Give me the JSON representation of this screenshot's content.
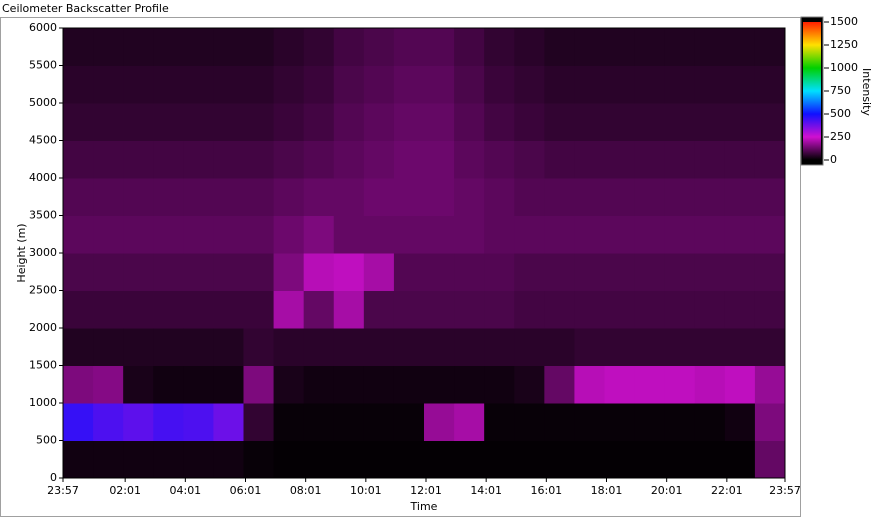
{
  "chart_data": {
    "type": "heatmap",
    "title": "Ceilometer Backscatter Profile",
    "x_label": "Time",
    "y_label": "Height (m)",
    "colorbar_label": "Intensity",
    "xlim": [
      0,
      1440
    ],
    "xticks": [
      {
        "value": 0,
        "label": "23:57"
      },
      {
        "value": 124,
        "label": "02:01"
      },
      {
        "value": 244,
        "label": "04:01"
      },
      {
        "value": 364,
        "label": "06:01"
      },
      {
        "value": 484,
        "label": "08:01"
      },
      {
        "value": 604,
        "label": "10:01"
      },
      {
        "value": 724,
        "label": "12:01"
      },
      {
        "value": 844,
        "label": "14:01"
      },
      {
        "value": 964,
        "label": "16:01"
      },
      {
        "value": 1084,
        "label": "18:01"
      },
      {
        "value": 1204,
        "label": "20:01"
      },
      {
        "value": 1324,
        "label": "22:01"
      },
      {
        "value": 1440,
        "label": "23:57"
      }
    ],
    "ylim": [
      0,
      6000
    ],
    "yticks": [
      0,
      500,
      1000,
      1500,
      2000,
      2500,
      3000,
      3500,
      4000,
      4500,
      5000,
      5500,
      6000
    ],
    "clim": [
      0,
      1500
    ],
    "cticks": [
      0,
      250,
      500,
      750,
      1000,
      1250,
      1500
    ],
    "colors": [
      "#000000",
      "#d010d0",
      "#1010ff",
      "#00e0ff",
      "#00d000",
      "#ffe000",
      "#ff2000"
    ],
    "z": [
      [
        20,
        20,
        20,
        20,
        20,
        20,
        10,
        5,
        5,
        5,
        5,
        5,
        5,
        5,
        5,
        5,
        5,
        5,
        5,
        5,
        5,
        5,
        5,
        120
      ],
      [
        450,
        420,
        400,
        430,
        420,
        380,
        60,
        10,
        10,
        10,
        10,
        10,
        180,
        200,
        10,
        10,
        10,
        10,
        10,
        10,
        10,
        10,
        20,
        150
      ],
      [
        150,
        160,
        30,
        20,
        20,
        20,
        150,
        30,
        20,
        20,
        20,
        20,
        20,
        20,
        20,
        30,
        120,
        220,
        230,
        230,
        230,
        220,
        230,
        180
      ],
      [
        40,
        40,
        40,
        40,
        40,
        40,
        60,
        50,
        50,
        50,
        50,
        50,
        50,
        50,
        50,
        50,
        50,
        60,
        60,
        60,
        60,
        60,
        60,
        60
      ],
      [
        70,
        70,
        70,
        70,
        70,
        70,
        70,
        200,
        120,
        200,
        90,
        90,
        90,
        90,
        90,
        80,
        80,
        80,
        80,
        80,
        80,
        80,
        80,
        80
      ],
      [
        90,
        90,
        90,
        90,
        90,
        90,
        90,
        150,
        220,
        230,
        200,
        100,
        100,
        100,
        100,
        90,
        90,
        90,
        90,
        90,
        90,
        90,
        90,
        90
      ],
      [
        110,
        110,
        110,
        110,
        110,
        110,
        110,
        130,
        150,
        120,
        120,
        120,
        120,
        120,
        110,
        110,
        110,
        110,
        110,
        110,
        110,
        110,
        110,
        110
      ],
      [
        100,
        100,
        100,
        100,
        100,
        100,
        100,
        110,
        120,
        120,
        130,
        130,
        130,
        120,
        110,
        100,
        100,
        100,
        100,
        100,
        100,
        100,
        100,
        100
      ],
      [
        80,
        80,
        80,
        80,
        80,
        80,
        80,
        90,
        100,
        110,
        120,
        130,
        130,
        110,
        100,
        90,
        80,
        80,
        80,
        80,
        80,
        80,
        80,
        80
      ],
      [
        60,
        60,
        60,
        60,
        60,
        60,
        60,
        70,
        80,
        100,
        110,
        120,
        120,
        100,
        80,
        70,
        60,
        60,
        60,
        60,
        60,
        60,
        60,
        60
      ],
      [
        50,
        50,
        50,
        50,
        50,
        50,
        50,
        60,
        70,
        90,
        100,
        110,
        110,
        90,
        70,
        60,
        50,
        50,
        50,
        50,
        50,
        50,
        50,
        50
      ],
      [
        40,
        40,
        40,
        40,
        40,
        40,
        40,
        50,
        60,
        80,
        90,
        100,
        100,
        80,
        60,
        50,
        40,
        40,
        40,
        40,
        40,
        40,
        40,
        40
      ]
    ]
  }
}
